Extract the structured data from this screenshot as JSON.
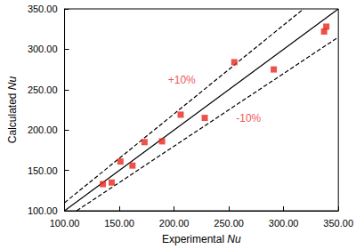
{
  "chart_data": {
    "type": "scatter",
    "xlabel": "Experimental Nu",
    "ylabel": "Calculated Nu",
    "xlim": [
      100,
      350
    ],
    "ylim": [
      100,
      350
    ],
    "xticks": [
      {
        "value": 100,
        "label": "100.00"
      },
      {
        "value": 150,
        "label": "150.00"
      },
      {
        "value": 200,
        "label": "200.00"
      },
      {
        "value": 250,
        "label": "250.00"
      },
      {
        "value": 300,
        "label": "300.00"
      },
      {
        "value": 350,
        "label": "350.00"
      }
    ],
    "yticks": [
      {
        "value": 100,
        "label": "100.00"
      },
      {
        "value": 150,
        "label": "150.00"
      },
      {
        "value": 200,
        "label": "200.00"
      },
      {
        "value": 250,
        "label": "250.00"
      },
      {
        "value": 300,
        "label": "300.00"
      },
      {
        "value": 350,
        "label": "350.00"
      }
    ],
    "grid": false,
    "series": [
      {
        "type": "scatter",
        "marker": "square",
        "color": "#e8261c",
        "x": [
          135,
          143,
          151,
          162,
          173,
          189,
          206,
          228,
          255,
          291,
          337,
          339
        ],
        "values": [
          133,
          135,
          161,
          156,
          185,
          186,
          219,
          215,
          284,
          275,
          322,
          328
        ]
      },
      {
        "type": "line",
        "line_style": "solid",
        "color": "#000000",
        "x": [
          100,
          350
        ],
        "values": [
          100,
          350
        ]
      },
      {
        "type": "line",
        "line_style": "dashed",
        "color": "#000000",
        "x": [
          100,
          318.2
        ],
        "values": [
          110,
          350
        ]
      },
      {
        "type": "line",
        "line_style": "dashed",
        "color": "#000000",
        "x": [
          111.1,
          350
        ],
        "values": [
          100,
          315
        ]
      }
    ],
    "annotations": [
      {
        "text": "+10%",
        "x": 207,
        "y": 262,
        "color": "#e8261c"
      },
      {
        "text": "-10%",
        "x": 268,
        "y": 214,
        "color": "#e8261c"
      }
    ]
  }
}
